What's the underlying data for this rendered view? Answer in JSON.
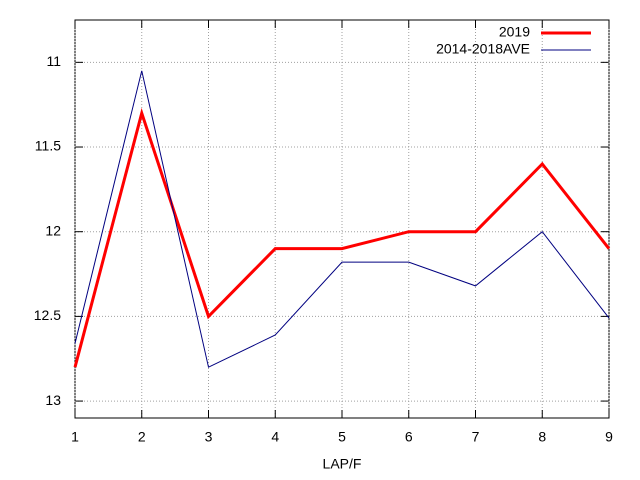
{
  "chart_data": {
    "type": "line",
    "xlabel": "LAP/F",
    "x": [
      1,
      2,
      3,
      4,
      5,
      6,
      7,
      8,
      9
    ],
    "series": [
      {
        "name": "2019",
        "color": "#ff0000",
        "values": [
          12.8,
          11.3,
          12.5,
          12.1,
          12.1,
          12.0,
          12.0,
          11.6,
          12.1
        ]
      },
      {
        "name": "2014-2018AVE",
        "color": "#000080",
        "values": [
          12.66,
          11.05,
          12.8,
          12.61,
          12.18,
          12.18,
          12.32,
          12.0,
          12.51
        ]
      }
    ],
    "xlim": [
      1,
      9
    ],
    "xticks": [
      1,
      2,
      3,
      4,
      5,
      6,
      7,
      8,
      9
    ],
    "ylim": [
      13.1,
      10.75
    ],
    "yticks": [
      11,
      11.5,
      12,
      12.5,
      13
    ],
    "y_reversed": true,
    "grid": true,
    "legend": "top-right"
  }
}
